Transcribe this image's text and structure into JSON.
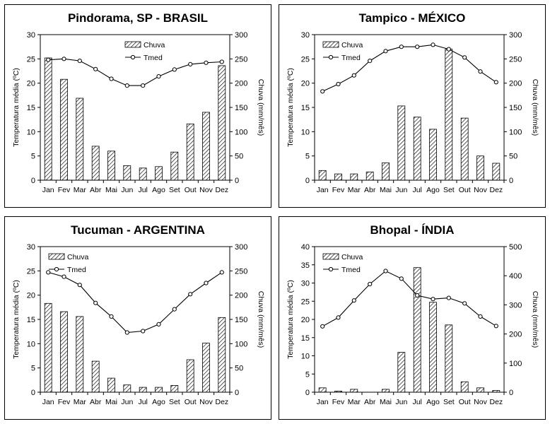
{
  "chart_data": [
    {
      "type": "bar+line",
      "title": "Pindorama, SP - BRASIL",
      "categories": [
        "Jan",
        "Fev",
        "Mar",
        "Abr",
        "Mai",
        "Jun",
        "Jul",
        "Ago",
        "Set",
        "Out",
        "Nov",
        "Dez"
      ],
      "ylabel_left": "Temperatura média (ºC)",
      "ylabel_right": "Chuva (mm/mês)",
      "ylim_left": [
        0,
        30
      ],
      "yticks_left": [
        0,
        5,
        10,
        15,
        20,
        25,
        30
      ],
      "ylim_right": [
        0,
        300
      ],
      "yticks_right": [
        0,
        50,
        100,
        150,
        200,
        250,
        300
      ],
      "legend": {
        "bar": "Chuva",
        "line": "Tmed"
      },
      "bar_series": {
        "name": "Chuva",
        "axis": "right",
        "values": [
          252,
          208,
          169,
          70,
          60,
          30,
          25,
          28,
          58,
          116,
          140,
          236
        ]
      },
      "line_series": {
        "name": "Tmed",
        "axis": "left",
        "values": [
          24.8,
          25.0,
          24.6,
          22.9,
          20.9,
          19.5,
          19.5,
          21.4,
          22.8,
          23.9,
          24.2,
          24.4
        ]
      }
    },
    {
      "type": "bar+line",
      "title": "Tampico - MÉXICO",
      "categories": [
        "Jan",
        "Fev",
        "Mar",
        "Abr",
        "Mai",
        "Jun",
        "Jul",
        "Ago",
        "Set",
        "Out",
        "Nov",
        "Dez"
      ],
      "ylabel_left": "Temperatura média (ºC)",
      "ylabel_right": "Chuva (mm/mês)",
      "ylim_left": [
        0,
        30
      ],
      "yticks_left": [
        0,
        5,
        10,
        15,
        20,
        25,
        30
      ],
      "ylim_right": [
        0,
        300
      ],
      "yticks_right": [
        0,
        50,
        100,
        150,
        200,
        250,
        300
      ],
      "legend": {
        "bar": "Chuva",
        "line": "Tmed"
      },
      "bar_series": {
        "name": "Chuva",
        "axis": "right",
        "values": [
          20,
          13,
          13,
          17,
          36,
          153,
          130,
          105,
          270,
          128,
          50,
          35
        ]
      },
      "line_series": {
        "name": "Tmed",
        "axis": "left",
        "values": [
          18.3,
          19.8,
          21.6,
          24.6,
          26.6,
          27.5,
          27.5,
          27.9,
          27.0,
          25.3,
          22.4,
          20.2
        ]
      }
    },
    {
      "type": "bar+line",
      "title": "Tucuman - ARGENTINA",
      "categories": [
        "Jan",
        "Fev",
        "Mar",
        "Abr",
        "Mai",
        "Jun",
        "Jul",
        "Ago",
        "Set",
        "Out",
        "Nov",
        "Dez"
      ],
      "ylabel_left": "Temperatura média (ºC)",
      "ylabel_right": "Chuva (mm/mês)",
      "ylim_left": [
        0,
        30
      ],
      "yticks_left": [
        0,
        5,
        10,
        15,
        20,
        25,
        30
      ],
      "ylim_right": [
        0,
        300
      ],
      "yticks_right": [
        0,
        50,
        100,
        150,
        200,
        250,
        300
      ],
      "legend": {
        "bar": "Chuva",
        "line": "Tmed"
      },
      "bar_series": {
        "name": "Chuva",
        "axis": "right",
        "values": [
          183,
          166,
          156,
          64,
          29,
          15,
          10,
          10,
          14,
          67,
          101,
          154
        ]
      },
      "line_series": {
        "name": "Tmed",
        "axis": "left",
        "values": [
          24.7,
          23.8,
          22.1,
          18.4,
          15.6,
          12.3,
          12.6,
          14.0,
          17.1,
          20.2,
          22.5,
          24.7
        ]
      }
    },
    {
      "type": "bar+line",
      "title": "Bhopal - ÍNDIA",
      "categories": [
        "Jan",
        "Fev",
        "Mar",
        "Abr",
        "Mai",
        "Jun",
        "Jul",
        "Ago",
        "Set",
        "Out",
        "Nov",
        "Dez"
      ],
      "ylabel_left": "Temperatura média (ºC)",
      "ylabel_right": "Chuva (mm/mês)",
      "ylim_left": [
        0,
        40
      ],
      "yticks_left": [
        0,
        5,
        10,
        15,
        20,
        25,
        30,
        35,
        40
      ],
      "ylim_right": [
        0,
        500
      ],
      "yticks_right": [
        0,
        100,
        200,
        300,
        400,
        500
      ],
      "legend": {
        "bar": "Chuva",
        "line": "Tmed"
      },
      "bar_series": {
        "name": "Chuva",
        "axis": "right",
        "values": [
          15,
          4,
          10,
          0,
          10,
          137,
          428,
          309,
          231,
          36,
          15,
          6
        ]
      },
      "line_series": {
        "name": "Tmed",
        "axis": "left",
        "values": [
          18.1,
          20.5,
          25.2,
          29.7,
          33.3,
          31.2,
          26.6,
          25.6,
          25.9,
          24.4,
          20.8,
          18.2
        ]
      }
    }
  ],
  "colors": {
    "frame": "#000000",
    "bar_hatch": "#000000",
    "line": "#000000",
    "marker_fill": "#ffffff"
  }
}
